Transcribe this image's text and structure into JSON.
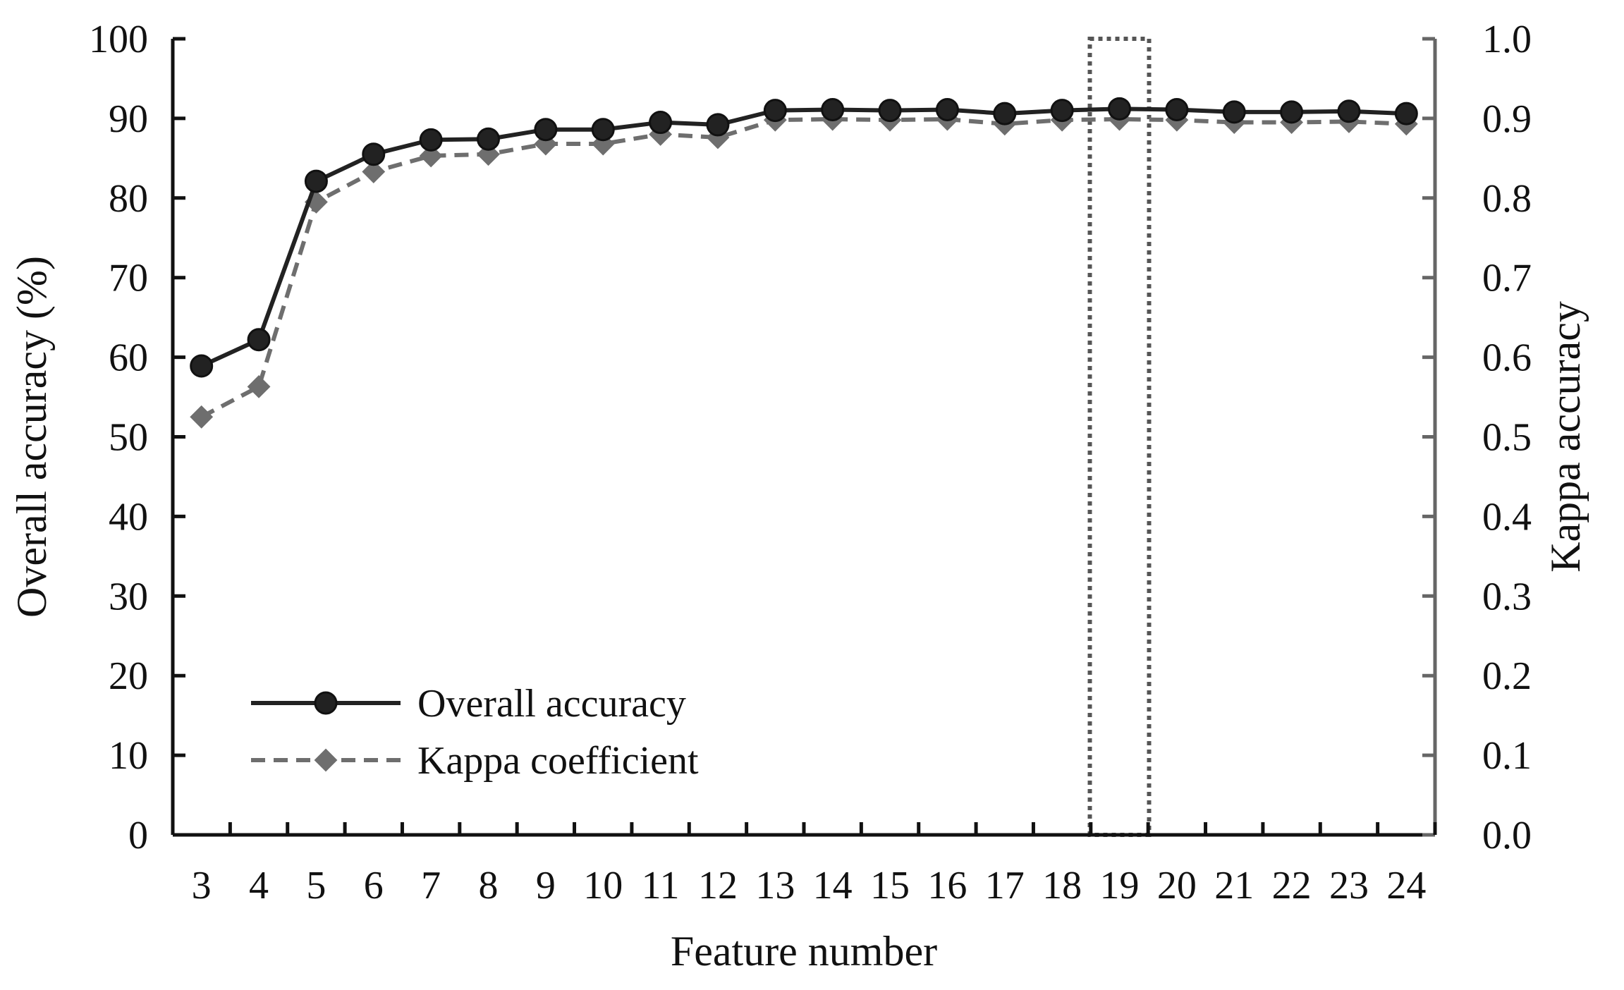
{
  "chart_data": {
    "type": "line",
    "x": [
      3,
      4,
      5,
      6,
      7,
      8,
      9,
      10,
      11,
      12,
      13,
      14,
      15,
      16,
      17,
      18,
      19,
      20,
      21,
      22,
      23,
      24
    ],
    "xlabel": "Feature number",
    "ylabel": "Overall accuracy (%)",
    "y2label": "Kappa accuracy",
    "ylim": [
      0,
      100
    ],
    "y2lim": [
      0.0,
      1.0
    ],
    "yticks": [
      "0",
      "10",
      "20",
      "30",
      "40",
      "50",
      "60",
      "70",
      "80",
      "90",
      "100"
    ],
    "y2ticks": [
      "0.0",
      "0.1",
      "0.2",
      "0.3",
      "0.4",
      "0.5",
      "0.6",
      "0.7",
      "0.8",
      "0.9",
      "1.0"
    ],
    "series": [
      {
        "name": "Overall accuracy",
        "axis": "left",
        "color": "#222222",
        "line_style": "solid",
        "marker": "circle",
        "values": [
          58.9,
          62.2,
          82.1,
          85.5,
          87.3,
          87.4,
          88.6,
          88.6,
          89.5,
          89.2,
          91.0,
          91.1,
          91.0,
          91.1,
          90.6,
          91.0,
          91.2,
          91.1,
          90.8,
          90.8,
          90.9,
          90.6
        ]
      },
      {
        "name": "Kappa coefficient",
        "axis": "right",
        "color": "#6e6e6e",
        "line_style": "dashed",
        "marker": "diamond",
        "values": [
          0.525,
          0.563,
          0.795,
          0.833,
          0.853,
          0.855,
          0.868,
          0.868,
          0.88,
          0.876,
          0.898,
          0.899,
          0.898,
          0.899,
          0.893,
          0.898,
          0.899,
          0.898,
          0.895,
          0.895,
          0.896,
          0.893
        ]
      }
    ],
    "highlight": {
      "x": 19,
      "style": "dotted-box"
    },
    "legend_position": "bottom-left",
    "grid": false
  }
}
